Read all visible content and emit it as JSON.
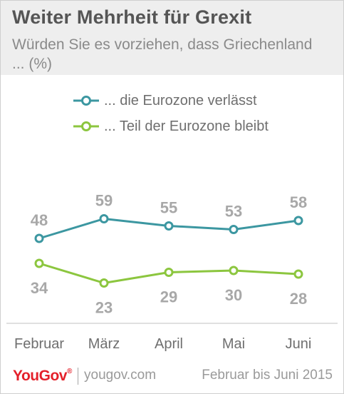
{
  "header": {
    "title": "Weiter Mehrheit  für Grexit",
    "subtitle": "Würden Sie es vorziehen, dass Griechenland ... (%)"
  },
  "footer": {
    "logo": "YouGov",
    "site": "yougov.com",
    "period": "Februar bis Juni 2015"
  },
  "colors": {
    "series_leave": "#3c97a1",
    "series_stay": "#8cc63f",
    "header_bg": "#eeeeee",
    "axis_text": "#6f6f6f",
    "value_text": "#a8a8a8",
    "brand_red": "#e4202a"
  },
  "chart_data": {
    "type": "line",
    "categories": [
      "Februar",
      "März",
      "April",
      "Mai",
      "Juni"
    ],
    "series": [
      {
        "name": "... die Eurozone verlässt",
        "values": [
          48,
          59,
          55,
          53,
          58
        ],
        "labels": [
          "48",
          "59",
          "55",
          "53",
          "58"
        ],
        "color": "#3c97a1",
        "label_position": "above"
      },
      {
        "name": "... Teil der Eurozone bleibt",
        "values": [
          34,
          23,
          29,
          30,
          28
        ],
        "labels": [
          "34",
          "23",
          "29",
          "30",
          "28"
        ],
        "color": "#8cc63f",
        "label_position": "below"
      }
    ],
    "title": "Weiter Mehrheit  für Grexit",
    "subtitle": "Würden Sie es vorziehen, dass Griechenland ... (%)",
    "xlabel": "",
    "ylabel": "",
    "grid": false,
    "legend": "top"
  }
}
